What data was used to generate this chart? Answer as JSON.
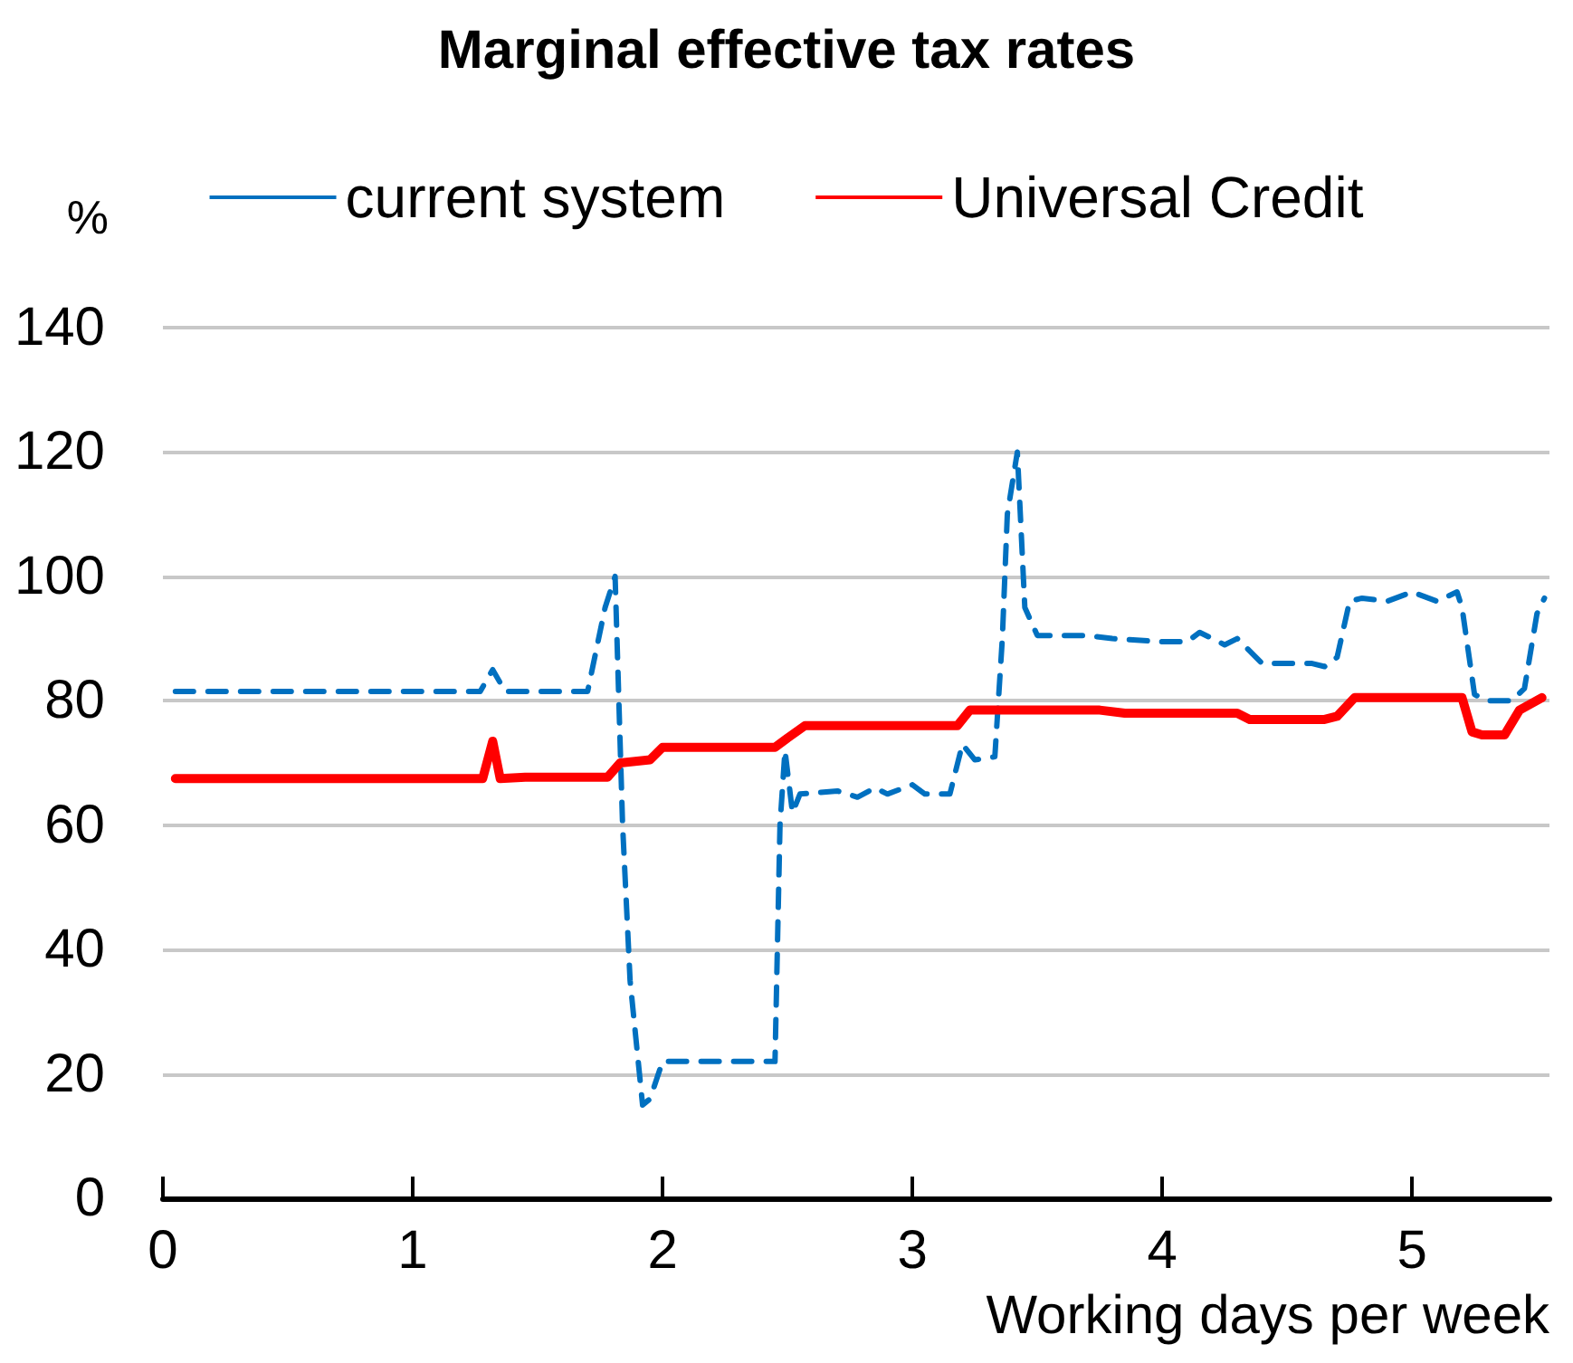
{
  "chart_data": {
    "type": "line",
    "title": "Marginal effective tax rates",
    "xlabel": "Working days per week",
    "ylabel": "%",
    "xlim": [
      0,
      5.55
    ],
    "xticks": [
      0,
      1,
      2,
      3,
      4,
      5
    ],
    "ylim": [
      0,
      140
    ],
    "yticks": [
      0,
      20,
      40,
      60,
      80,
      100,
      120,
      140
    ],
    "grid": "y",
    "legend": "top",
    "marker": "none",
    "series": [
      {
        "name": "current system",
        "color": "#0070c0",
        "line_style": "dashed",
        "x": [
          0.05,
          1.27,
          1.32,
          1.37,
          1.7,
          1.77,
          1.81,
          1.84,
          1.87,
          1.92,
          1.95,
          2.0,
          2.45,
          2.47,
          2.49,
          2.52,
          2.55,
          2.7,
          2.78,
          2.85,
          2.9,
          3.0,
          3.05,
          3.15,
          3.2,
          3.25,
          3.33,
          3.36,
          3.38,
          3.42,
          3.45,
          3.5,
          3.6,
          3.7,
          3.8,
          4.0,
          4.1,
          4.15,
          4.25,
          4.3,
          4.4,
          4.6,
          4.65,
          4.7,
          4.75,
          4.8,
          4.9,
          5.0,
          5.1,
          5.18,
          5.2,
          5.25,
          5.3,
          5.4,
          5.45,
          5.5,
          5.53
        ],
        "values": [
          81.5,
          81.5,
          85,
          81.5,
          81.5,
          95,
          100,
          60,
          35,
          15,
          16,
          22,
          22,
          60,
          72,
          62,
          65,
          65.5,
          64.5,
          66,
          65,
          66.5,
          65,
          65,
          73,
          70.5,
          71,
          90,
          110,
          120,
          95,
          90.5,
          90.5,
          90.5,
          90,
          89.5,
          89.5,
          91,
          89,
          90,
          86,
          86,
          85.5,
          87,
          96,
          96.5,
          96,
          97.5,
          96,
          97.5,
          95,
          81,
          80,
          80,
          82,
          94,
          96.5
        ]
      },
      {
        "name": "Universal Credit",
        "color": "#ff0000",
        "line_style": "solid",
        "x": [
          0.05,
          1.28,
          1.32,
          1.35,
          1.45,
          1.78,
          1.83,
          1.95,
          2.0,
          2.45,
          2.5,
          2.57,
          3.18,
          3.23,
          3.75,
          3.85,
          4.3,
          4.35,
          4.65,
          4.7,
          4.77,
          5.2,
          5.24,
          5.28,
          5.37,
          5.43,
          5.52
        ],
        "values": [
          67.5,
          67.5,
          73.5,
          67.5,
          67.7,
          67.7,
          70,
          70.5,
          72.5,
          72.5,
          74,
          76,
          76,
          78.5,
          78.5,
          78,
          78,
          77,
          77,
          77.5,
          80.5,
          80.5,
          75,
          74.5,
          74.5,
          78.5,
          80.5
        ]
      }
    ]
  }
}
